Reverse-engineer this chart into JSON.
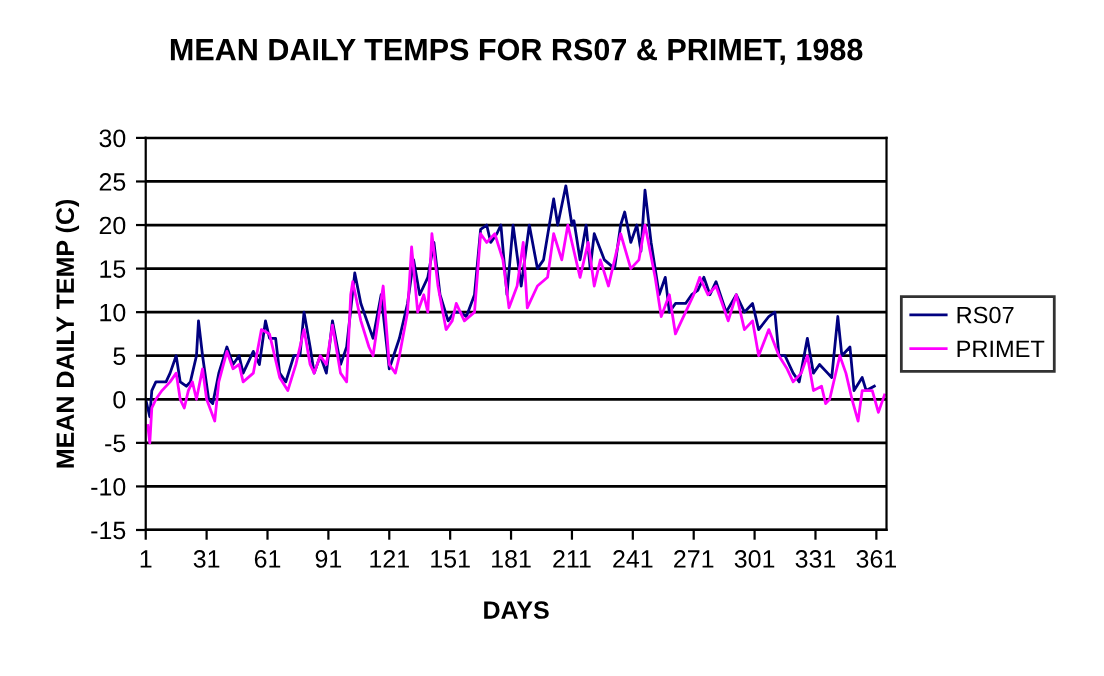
{
  "chart_data": {
    "type": "line",
    "title": "MEAN DAILY TEMPS FOR RS07 & PRIMET, 1988",
    "xlabel": "DAYS",
    "ylabel": "MEAN DAILY TEMP (C)",
    "xlim": [
      1,
      366
    ],
    "xticks": [
      1,
      31,
      61,
      91,
      121,
      151,
      181,
      211,
      241,
      271,
      301,
      331,
      361
    ],
    "ylim": [
      -15,
      30
    ],
    "yticks": [
      -15,
      -10,
      -5,
      0,
      5,
      10,
      15,
      20,
      25,
      30
    ],
    "grid": "y",
    "legend": "right",
    "marker": "none",
    "line_style": "solid",
    "series": [
      {
        "name": "RS07",
        "color": "#000080",
        "x": [
          1,
          3,
          4,
          6,
          11,
          13,
          16,
          18,
          21,
          23,
          26,
          27,
          29,
          32,
          34,
          37,
          41,
          44,
          47,
          49,
          54,
          57,
          60,
          62,
          65,
          67,
          70,
          74,
          77,
          79,
          82,
          84,
          87,
          90,
          93,
          97,
          100,
          104,
          107,
          110,
          113,
          117,
          121,
          126,
          130,
          133,
          136,
          140,
          143,
          146,
          150,
          153,
          156,
          159,
          163,
          166,
          169,
          171,
          174,
          176,
          179,
          182,
          186,
          190,
          194,
          197,
          202,
          204,
          208,
          211,
          212,
          215,
          218,
          220,
          222,
          227,
          232,
          235,
          237,
          240,
          243,
          245,
          247,
          250,
          254,
          257,
          259,
          262,
          267,
          270,
          273,
          276,
          279,
          282,
          287,
          292,
          296,
          300,
          303,
          308,
          311,
          313,
          316,
          320,
          323,
          327,
          330,
          333,
          337,
          339,
          342,
          344,
          348,
          350,
          354,
          356,
          360
        ],
        "values": [
          0,
          -2,
          1,
          2,
          2,
          3,
          5,
          2,
          1.5,
          2,
          5,
          9,
          5,
          0,
          -0.5,
          3,
          6,
          4,
          5,
          3,
          5.5,
          4,
          9,
          7,
          7,
          3,
          2,
          5,
          5,
          10,
          6,
          3,
          5,
          3,
          9,
          4,
          6,
          14.5,
          11,
          9,
          7,
          12,
          3.5,
          7,
          11,
          16,
          12,
          14,
          18,
          12,
          9,
          10,
          10,
          9.5,
          12,
          19.5,
          20,
          18,
          19,
          20,
          12,
          20,
          13,
          20,
          15,
          16,
          23,
          20,
          24.5,
          20,
          20.5,
          16,
          20,
          15,
          19,
          16,
          15,
          20,
          21.5,
          18,
          20,
          17,
          24,
          18,
          12,
          14,
          10,
          11,
          11,
          12,
          12.5,
          14,
          12,
          13.5,
          10,
          12,
          10,
          11,
          8,
          9.5,
          10,
          5,
          5,
          3,
          2,
          7,
          3,
          4,
          3,
          2.5,
          9.5,
          5,
          6,
          1,
          2.5,
          1,
          1.5
        ]
      },
      {
        "name": "PRIMET",
        "color": "#ff00ff",
        "x": [
          2,
          3,
          4,
          6,
          9,
          13,
          16,
          18,
          20,
          22,
          24,
          26,
          29,
          31,
          35,
          37,
          41,
          44,
          47,
          49,
          54,
          58,
          62,
          67,
          71,
          75,
          79,
          82,
          84,
          87,
          90,
          93,
          97,
          100,
          102,
          103,
          107,
          111,
          113,
          118,
          121,
          124,
          126,
          130,
          132,
          135,
          138,
          140,
          142,
          145,
          149,
          152,
          154,
          158,
          163,
          166,
          169,
          173,
          177,
          180,
          184,
          187,
          189,
          194,
          199,
          202,
          206,
          209,
          215,
          219,
          222,
          225,
          229,
          235,
          240,
          244,
          247,
          252,
          255,
          259,
          262,
          267,
          271,
          274,
          278,
          282,
          288,
          292,
          296,
          300,
          303,
          308,
          313,
          317,
          320,
          324,
          327,
          330,
          334,
          336,
          338,
          343,
          346,
          349,
          352,
          354,
          359,
          362,
          365
        ],
        "values": [
          -3,
          -5,
          -1,
          0,
          1,
          2,
          3,
          0,
          -1,
          1,
          2,
          0,
          3.5,
          0,
          -2.5,
          2,
          5.5,
          3.5,
          4,
          2,
          3,
          8,
          7.5,
          2.5,
          1,
          4,
          8,
          4,
          3,
          5,
          4,
          8.5,
          3,
          2,
          12,
          13.5,
          9,
          6,
          5,
          13,
          4,
          3,
          5,
          10,
          17.5,
          10,
          12,
          10,
          19,
          13,
          8,
          9,
          11,
          9,
          10,
          19,
          18,
          19,
          16,
          10.5,
          13,
          18,
          10.5,
          13,
          14,
          19,
          16,
          20,
          14,
          18,
          13,
          16,
          13,
          19,
          15,
          16,
          20,
          14,
          9.5,
          12,
          7.5,
          10,
          12,
          14,
          12,
          13,
          9,
          12,
          8,
          9,
          5,
          8,
          5,
          3.5,
          2,
          3,
          5,
          1,
          1.5,
          -0.5,
          0,
          5,
          3,
          0,
          -2.5,
          1,
          1,
          -1.5,
          0.5
        ]
      }
    ]
  }
}
